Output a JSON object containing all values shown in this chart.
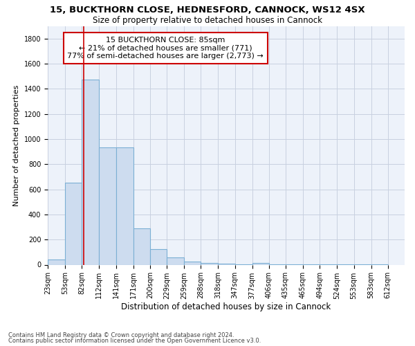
{
  "title1": "15, BUCKTHORN CLOSE, HEDNESFORD, CANNOCK, WS12 4SX",
  "title2": "Size of property relative to detached houses in Cannock",
  "xlabel": "Distribution of detached houses by size in Cannock",
  "ylabel": "Number of detached properties",
  "footer1": "Contains HM Land Registry data © Crown copyright and database right 2024.",
  "footer2": "Contains public sector information licensed under the Open Government Licence v3.0.",
  "annotation_line1": "15 BUCKTHORN CLOSE: 85sqm",
  "annotation_line2": "← 21% of detached houses are smaller (771)",
  "annotation_line3": "77% of semi-detached houses are larger (2,773) →",
  "bar_left_edges": [
    23,
    53,
    82,
    112,
    141,
    171,
    200,
    229,
    259,
    288,
    318,
    347,
    377,
    406,
    435,
    465,
    494,
    524,
    553,
    583
  ],
  "bar_widths": [
    30,
    29,
    30,
    29,
    30,
    29,
    29,
    30,
    29,
    30,
    29,
    30,
    29,
    29,
    30,
    29,
    30,
    29,
    30,
    29
  ],
  "bar_heights": [
    40,
    650,
    1475,
    935,
    935,
    290,
    125,
    60,
    25,
    15,
    10,
    5,
    15,
    5,
    2,
    2,
    2,
    2,
    2,
    2
  ],
  "bar_color": "#cddcef",
  "bar_edge_color": "#7bafd4",
  "red_line_x": 85,
  "red_line_color": "#cc0000",
  "annotation_box_color": "#cc0000",
  "ylim": [
    0,
    1900
  ],
  "yticks": [
    0,
    200,
    400,
    600,
    800,
    1000,
    1200,
    1400,
    1600,
    1800
  ],
  "xtick_labels": [
    "23sqm",
    "53sqm",
    "82sqm",
    "112sqm",
    "141sqm",
    "171sqm",
    "200sqm",
    "229sqm",
    "259sqm",
    "288sqm",
    "318sqm",
    "347sqm",
    "377sqm",
    "406sqm",
    "435sqm",
    "465sqm",
    "494sqm",
    "524sqm",
    "553sqm",
    "583sqm",
    "612sqm"
  ],
  "xtick_positions": [
    23,
    53,
    82,
    112,
    141,
    171,
    200,
    229,
    259,
    288,
    318,
    347,
    377,
    406,
    435,
    465,
    494,
    524,
    553,
    583,
    612
  ],
  "grid_color": "#c8d0e0",
  "bg_color": "#edf2fa",
  "title1_fontsize": 9.5,
  "title2_fontsize": 8.5,
  "xlabel_fontsize": 8.5,
  "ylabel_fontsize": 8,
  "annotation_fontsize": 8,
  "tick_fontsize": 7,
  "footer_fontsize": 6
}
